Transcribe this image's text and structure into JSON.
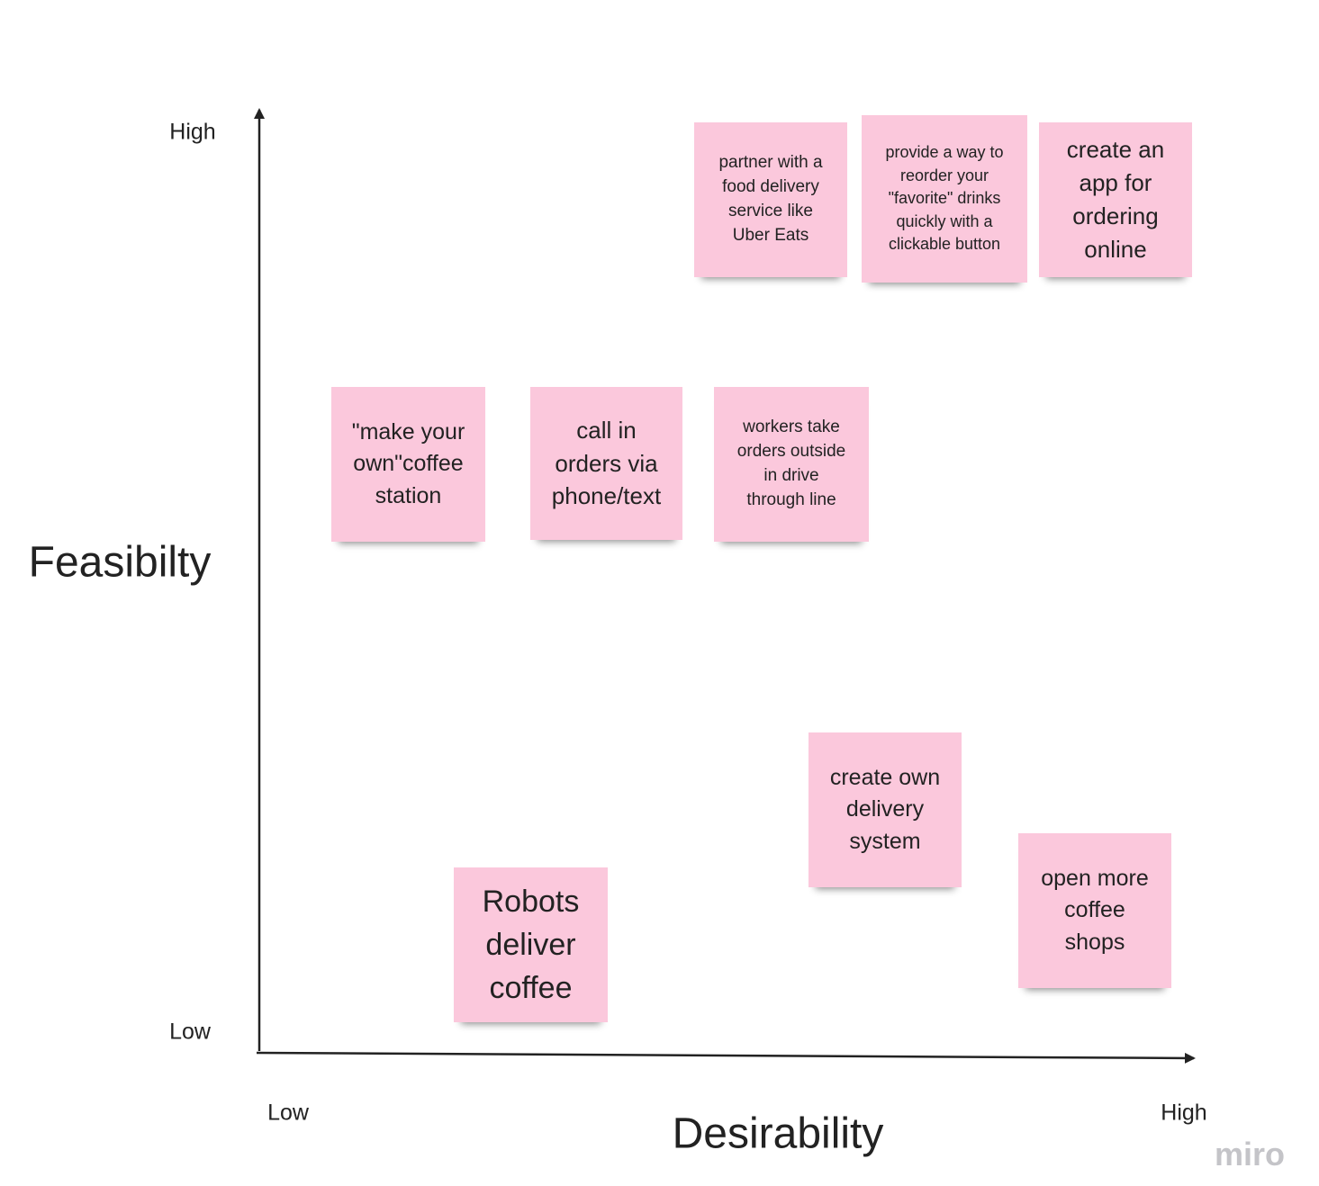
{
  "axes": {
    "y_title": "Feasibilty",
    "y_high": "High",
    "y_low": "Low",
    "x_title": "Desirability",
    "x_low": "Low",
    "x_high": "High"
  },
  "brand": "miro",
  "notes": [
    {
      "lines": [
        "partner with a",
        "food delivery",
        "service like",
        "Uber Eats"
      ]
    },
    {
      "lines": [
        "provide a way to",
        "reorder your",
        "\"favorite\" drinks",
        "quickly with a",
        "clickable button"
      ]
    },
    {
      "lines": [
        "create an",
        "app for",
        "ordering",
        "online"
      ]
    },
    {
      "lines": [
        "\"make your",
        "own\"coffee",
        "station"
      ]
    },
    {
      "lines": [
        "call in",
        "orders via",
        "phone/text"
      ]
    },
    {
      "lines": [
        "workers take",
        "orders outside",
        "in drive",
        "through line"
      ]
    },
    {
      "lines": [
        "create own",
        "delivery",
        "system"
      ]
    },
    {
      "lines": [
        "Robots",
        "deliver",
        "coffee"
      ]
    },
    {
      "lines": [
        "open more",
        "coffee",
        "shops"
      ]
    }
  ]
}
